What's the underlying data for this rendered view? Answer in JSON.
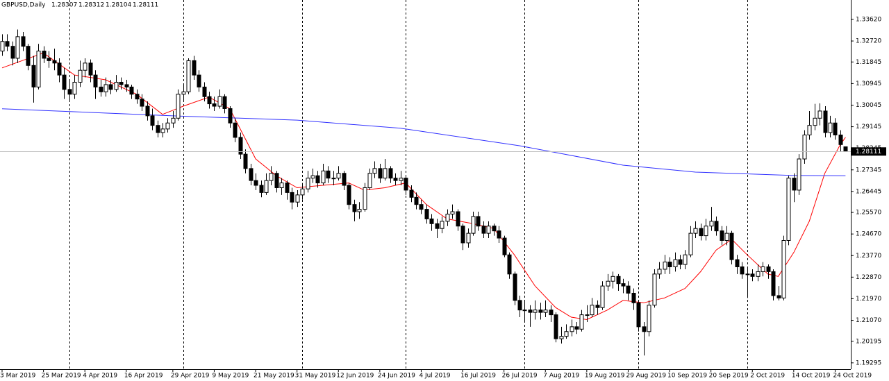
{
  "chart_data": {
    "type": "candlestick",
    "symbol": "GBPUSD,Daily",
    "ohlc": [
      [
        1.323,
        1.33,
        1.321,
        1.327
      ],
      [
        1.327,
        1.33,
        1.323,
        1.325
      ],
      [
        1.325,
        1.327,
        1.317,
        1.32
      ],
      [
        1.32,
        1.332,
        1.318,
        1.329
      ],
      [
        1.329,
        1.331,
        1.323,
        1.325
      ],
      [
        1.325,
        1.326,
        1.315,
        1.317
      ],
      [
        1.317,
        1.321,
        1.3015,
        1.308
      ],
      [
        1.308,
        1.326,
        1.307,
        1.323
      ],
      [
        1.323,
        1.325,
        1.318,
        1.32
      ],
      [
        1.32,
        1.323,
        1.316,
        1.319
      ],
      [
        1.319,
        1.324,
        1.315,
        1.318
      ],
      [
        1.318,
        1.32,
        1.31,
        1.313
      ],
      [
        1.313,
        1.316,
        1.303,
        1.307
      ],
      [
        1.307,
        1.311,
        1.302,
        1.305
      ],
      [
        1.305,
        1.313,
        1.303,
        1.31
      ],
      [
        1.31,
        1.319,
        1.308,
        1.315
      ],
      [
        1.315,
        1.32,
        1.312,
        1.318
      ],
      [
        1.318,
        1.3195,
        1.31,
        1.313
      ],
      [
        1.313,
        1.315,
        1.303,
        1.308
      ],
      [
        1.308,
        1.311,
        1.304,
        1.306
      ],
      [
        1.306,
        1.312,
        1.304,
        1.309
      ],
      [
        1.309,
        1.311,
        1.305,
        1.307
      ],
      [
        1.307,
        1.313,
        1.306,
        1.31
      ],
      [
        1.31,
        1.312,
        1.307,
        1.309
      ],
      [
        1.309,
        1.311,
        1.306,
        1.308
      ],
      [
        1.308,
        1.309,
        1.303,
        1.305
      ],
      [
        1.305,
        1.307,
        1.301,
        1.303
      ],
      [
        1.303,
        1.305,
        1.298,
        1.3
      ],
      [
        1.3,
        1.302,
        1.294,
        1.296
      ],
      [
        1.296,
        1.299,
        1.29,
        1.292
      ],
      [
        1.292,
        1.294,
        1.287,
        1.289
      ],
      [
        1.289,
        1.293,
        1.287,
        1.2905
      ],
      [
        1.2905,
        1.295,
        1.289,
        1.293
      ],
      [
        1.293,
        1.298,
        1.291,
        1.295
      ],
      [
        1.295,
        1.307,
        1.294,
        1.305
      ],
      [
        1.305,
        1.309,
        1.302,
        1.306
      ],
      [
        1.306,
        1.32,
        1.305,
        1.319
      ],
      [
        1.319,
        1.321,
        1.311,
        1.313
      ],
      [
        1.313,
        1.315,
        1.306,
        1.308
      ],
      [
        1.308,
        1.31,
        1.302,
        1.304
      ],
      [
        1.304,
        1.306,
        1.299,
        1.301
      ],
      [
        1.301,
        1.304,
        1.298,
        1.3
      ],
      [
        1.3,
        1.307,
        1.299,
        1.304
      ],
      [
        1.304,
        1.305,
        1.297,
        1.299
      ],
      [
        1.299,
        1.3,
        1.291,
        1.293
      ],
      [
        1.293,
        1.295,
        1.285,
        1.287
      ],
      [
        1.287,
        1.289,
        1.278,
        1.28
      ],
      [
        1.28,
        1.282,
        1.272,
        1.274
      ],
      [
        1.274,
        1.276,
        1.267,
        1.269
      ],
      [
        1.269,
        1.272,
        1.265,
        1.267
      ],
      [
        1.267,
        1.269,
        1.262,
        1.264
      ],
      [
        1.264,
        1.272,
        1.263,
        1.269
      ],
      [
        1.269,
        1.275,
        1.267,
        1.272
      ],
      [
        1.272,
        1.273,
        1.264,
        1.266
      ],
      [
        1.266,
        1.27,
        1.263,
        1.268
      ],
      [
        1.268,
        1.269,
        1.261,
        1.264
      ],
      [
        1.264,
        1.266,
        1.257,
        1.26
      ],
      [
        1.26,
        1.265,
        1.258,
        1.263
      ],
      [
        1.263,
        1.268,
        1.261,
        1.2655
      ],
      [
        1.2655,
        1.273,
        1.264,
        1.27
      ],
      [
        1.27,
        1.274,
        1.268,
        1.271
      ],
      [
        1.271,
        1.273,
        1.266,
        1.268
      ],
      [
        1.268,
        1.276,
        1.267,
        1.273
      ],
      [
        1.273,
        1.275,
        1.268,
        1.27
      ],
      [
        1.27,
        1.273,
        1.267,
        1.27
      ],
      [
        1.27,
        1.275,
        1.269,
        1.272
      ],
      [
        1.272,
        1.273,
        1.265,
        1.267
      ],
      [
        1.267,
        1.268,
        1.257,
        1.259
      ],
      [
        1.259,
        1.261,
        1.252,
        1.256
      ],
      [
        1.256,
        1.26,
        1.253,
        1.257
      ],
      [
        1.257,
        1.268,
        1.256,
        1.266
      ],
      [
        1.266,
        1.274,
        1.265,
        1.272
      ],
      [
        1.272,
        1.277,
        1.27,
        1.274
      ],
      [
        1.274,
        1.276,
        1.268,
        1.27
      ],
      [
        1.27,
        1.278,
        1.269,
        1.274
      ],
      [
        1.274,
        1.275,
        1.268,
        1.27
      ],
      [
        1.27,
        1.272,
        1.267,
        1.269
      ],
      [
        1.269,
        1.273,
        1.267,
        1.27
      ],
      [
        1.27,
        1.271,
        1.263,
        1.265
      ],
      [
        1.265,
        1.267,
        1.26,
        1.262
      ],
      [
        1.262,
        1.264,
        1.257,
        1.259
      ],
      [
        1.259,
        1.261,
        1.255,
        1.257
      ],
      [
        1.257,
        1.259,
        1.251,
        1.253
      ],
      [
        1.253,
        1.255,
        1.248,
        1.251
      ],
      [
        1.251,
        1.253,
        1.245,
        1.249
      ],
      [
        1.249,
        1.254,
        1.247,
        1.252
      ],
      [
        1.252,
        1.257,
        1.25,
        1.255
      ],
      [
        1.255,
        1.259,
        1.253,
        1.256
      ],
      [
        1.256,
        1.257,
        1.248,
        1.25
      ],
      [
        1.25,
        1.251,
        1.24,
        1.243
      ],
      [
        1.243,
        1.249,
        1.241,
        1.247
      ],
      [
        1.247,
        1.256,
        1.246,
        1.254
      ],
      [
        1.254,
        1.256,
        1.248,
        1.25
      ],
      [
        1.25,
        1.252,
        1.245,
        1.247
      ],
      [
        1.247,
        1.252,
        1.245,
        1.25
      ],
      [
        1.25,
        1.251,
        1.246,
        1.248
      ],
      [
        1.248,
        1.25,
        1.243,
        1.245
      ],
      [
        1.245,
        1.246,
        1.237,
        1.238
      ],
      [
        1.238,
        1.239,
        1.228,
        1.23
      ],
      [
        1.23,
        1.231,
        1.217,
        1.219
      ],
      [
        1.219,
        1.221,
        1.212,
        1.215
      ],
      [
        1.215,
        1.219,
        1.21,
        1.215
      ],
      [
        1.215,
        1.217,
        1.208,
        1.214
      ],
      [
        1.214,
        1.219,
        1.211,
        1.215
      ],
      [
        1.215,
        1.218,
        1.211,
        1.214
      ],
      [
        1.214,
        1.219,
        1.212,
        1.215
      ],
      [
        1.215,
        1.217,
        1.21,
        1.213
      ],
      [
        1.213,
        1.214,
        1.2015,
        1.203
      ],
      [
        1.203,
        1.208,
        1.201,
        1.204
      ],
      [
        1.204,
        1.209,
        1.203,
        1.206
      ],
      [
        1.206,
        1.211,
        1.204,
        1.208
      ],
      [
        1.208,
        1.21,
        1.205,
        1.207
      ],
      [
        1.207,
        1.215,
        1.206,
        1.213
      ],
      [
        1.213,
        1.217,
        1.21,
        1.213
      ],
      [
        1.213,
        1.22,
        1.212,
        1.217
      ],
      [
        1.217,
        1.219,
        1.213,
        1.216
      ],
      [
        1.216,
        1.227,
        1.215,
        1.225
      ],
      [
        1.225,
        1.23,
        1.223,
        1.227
      ],
      [
        1.227,
        1.231,
        1.224,
        1.229
      ],
      [
        1.229,
        1.23,
        1.223,
        1.226
      ],
      [
        1.226,
        1.228,
        1.222,
        1.225
      ],
      [
        1.225,
        1.227,
        1.219,
        1.222
      ],
      [
        1.222,
        1.224,
        1.215,
        1.218
      ],
      [
        1.218,
        1.219,
        1.206,
        1.208
      ],
      [
        1.208,
        1.21,
        1.196,
        1.206
      ],
      [
        1.206,
        1.219,
        1.204,
        1.217
      ],
      [
        1.217,
        1.232,
        1.216,
        1.23
      ],
      [
        1.23,
        1.235,
        1.228,
        1.232
      ],
      [
        1.232,
        1.238,
        1.23,
        1.235
      ],
      [
        1.235,
        1.237,
        1.23,
        1.233
      ],
      [
        1.233,
        1.239,
        1.231,
        1.236
      ],
      [
        1.236,
        1.238,
        1.232,
        1.234
      ],
      [
        1.234,
        1.24,
        1.232,
        1.238
      ],
      [
        1.238,
        1.25,
        1.237,
        1.247
      ],
      [
        1.247,
        1.252,
        1.245,
        1.249
      ],
      [
        1.249,
        1.251,
        1.244,
        1.246
      ],
      [
        1.246,
        1.253,
        1.244,
        1.25
      ],
      [
        1.25,
        1.258,
        1.248,
        1.252
      ],
      [
        1.252,
        1.254,
        1.246,
        1.248
      ],
      [
        1.248,
        1.25,
        1.242,
        1.244
      ],
      [
        1.244,
        1.25,
        1.242,
        1.247
      ],
      [
        1.247,
        1.248,
        1.234,
        1.236
      ],
      [
        1.236,
        1.238,
        1.23,
        1.233
      ],
      [
        1.233,
        1.235,
        1.228,
        1.23
      ],
      [
        1.23,
        1.233,
        1.22,
        1.23
      ],
      [
        1.23,
        1.232,
        1.227,
        1.229
      ],
      [
        1.229,
        1.234,
        1.227,
        1.231
      ],
      [
        1.231,
        1.235,
        1.229,
        1.233
      ],
      [
        1.233,
        1.234,
        1.228,
        1.231
      ],
      [
        1.231,
        1.232,
        1.219,
        1.221
      ],
      [
        1.221,
        1.225,
        1.219,
        1.22
      ],
      [
        1.22,
        1.246,
        1.219,
        1.244
      ],
      [
        1.244,
        1.271,
        1.242,
        1.27
      ],
      [
        1.27,
        1.272,
        1.26,
        1.265
      ],
      [
        1.265,
        1.28,
        1.263,
        1.278
      ],
      [
        1.278,
        1.29,
        1.276,
        1.288
      ],
      [
        1.288,
        1.298,
        1.286,
        1.292
      ],
      [
        1.292,
        1.301,
        1.29,
        1.295
      ],
      [
        1.295,
        1.3012,
        1.292,
        1.298
      ],
      [
        1.298,
        1.3,
        1.287,
        1.289
      ],
      [
        1.289,
        1.296,
        1.287,
        1.293
      ],
      [
        1.293,
        1.295,
        1.286,
        1.288
      ],
      [
        1.288,
        1.29,
        1.281,
        1.284
      ],
      [
        1.28307,
        1.28312,
        1.28104,
        1.28111
      ]
    ],
    "series": [
      {
        "color": "#ff0000",
        "x": [
          0,
          8,
          14,
          20,
          26,
          31,
          35,
          40,
          44,
          49,
          53,
          57,
          62,
          67,
          70,
          74,
          78,
          82,
          86,
          91,
          95,
          99,
          103,
          107,
          110,
          113,
          117,
          120,
          124,
          128,
          132,
          135,
          138,
          141,
          144,
          148,
          150,
          153,
          156,
          159,
          162,
          163
        ],
        "values": [
          1.316,
          1.3222,
          1.313,
          1.311,
          1.305,
          1.2966,
          1.3,
          1.3038,
          1.299,
          1.278,
          1.271,
          1.266,
          1.267,
          1.268,
          1.265,
          1.266,
          1.268,
          1.259,
          1.253,
          1.251,
          1.249,
          1.238,
          1.225,
          1.216,
          1.212,
          1.211,
          1.215,
          1.219,
          1.218,
          1.22,
          1.224,
          1.231,
          1.24,
          1.2445,
          1.238,
          1.23,
          1.229,
          1.239,
          1.252,
          1.272,
          1.284,
          1.287
        ]
      },
      {
        "color": "#3030ff",
        "x": [
          0,
          33,
          57,
          77,
          100,
          120,
          134,
          153,
          163
        ],
        "values": [
          1.2989,
          1.296,
          1.2942,
          1.2908,
          1.2835,
          1.2754,
          1.2725,
          1.2711,
          1.271
        ]
      }
    ],
    "ylim": [
      1.1903,
      1.3443
    ],
    "yticks": [
      {
        "value": 1.3362,
        "label": "1.33620"
      },
      {
        "value": 1.3272,
        "label": "1.32720"
      },
      {
        "value": 1.31845,
        "label": "1.31845"
      },
      {
        "value": 1.30945,
        "label": "1.30945"
      },
      {
        "value": 1.30045,
        "label": "1.30045"
      },
      {
        "value": 1.29145,
        "label": "1.29145"
      },
      {
        "value": 1.28245,
        "label": "1.28245"
      },
      {
        "value": 1.27345,
        "label": "1.27345"
      },
      {
        "value": 1.26445,
        "label": "1.26445"
      },
      {
        "value": 1.2557,
        "label": "1.25570"
      },
      {
        "value": 1.2467,
        "label": "1.24670"
      },
      {
        "value": 1.2377,
        "label": "1.23770"
      },
      {
        "value": 1.2287,
        "label": "1.22870"
      },
      {
        "value": 1.2197,
        "label": "1.21970"
      },
      {
        "value": 1.2107,
        "label": "1.21070"
      },
      {
        "value": 1.20195,
        "label": "1.20195"
      },
      {
        "value": 1.19295,
        "label": "1.19295"
      }
    ],
    "xticks": [
      {
        "value": 0,
        "label": "3 Mar 2019"
      },
      {
        "value": 8,
        "label": "25 Mar 2019"
      },
      {
        "value": 16,
        "label": "4 Apr 2019"
      },
      {
        "value": 24,
        "label": "16 Apr 2019"
      },
      {
        "value": 33,
        "label": "29 Apr 2019"
      },
      {
        "value": 41,
        "label": "9 May 2019"
      },
      {
        "value": 49,
        "label": "21 May 2019"
      },
      {
        "value": 57,
        "label": "31 May 2019"
      },
      {
        "value": 65,
        "label": "12 Jun 2019"
      },
      {
        "value": 73,
        "label": "24 Jun 2019"
      },
      {
        "value": 81,
        "label": "4 Jul 2019"
      },
      {
        "value": 89,
        "label": "16 Jul 2019"
      },
      {
        "value": 97,
        "label": "26 Jul 2019"
      },
      {
        "value": 105,
        "label": "7 Aug 2019"
      },
      {
        "value": 113,
        "label": "19 Aug 2019"
      },
      {
        "value": 121,
        "label": "29 Aug 2019"
      },
      {
        "value": 129,
        "label": "10 Sep 2019"
      },
      {
        "value": 137,
        "label": "20 Sep 2019"
      },
      {
        "value": 145,
        "label": "2 Oct 2019"
      },
      {
        "value": 153,
        "label": "14 Oct 2019"
      },
      {
        "value": 161,
        "label": "24 Oct 2019"
      }
    ],
    "period_separators": [
      13,
      35,
      58,
      78,
      101,
      123,
      144
    ],
    "up_color": "#ffffff",
    "down_color": "#000000"
  }
}
